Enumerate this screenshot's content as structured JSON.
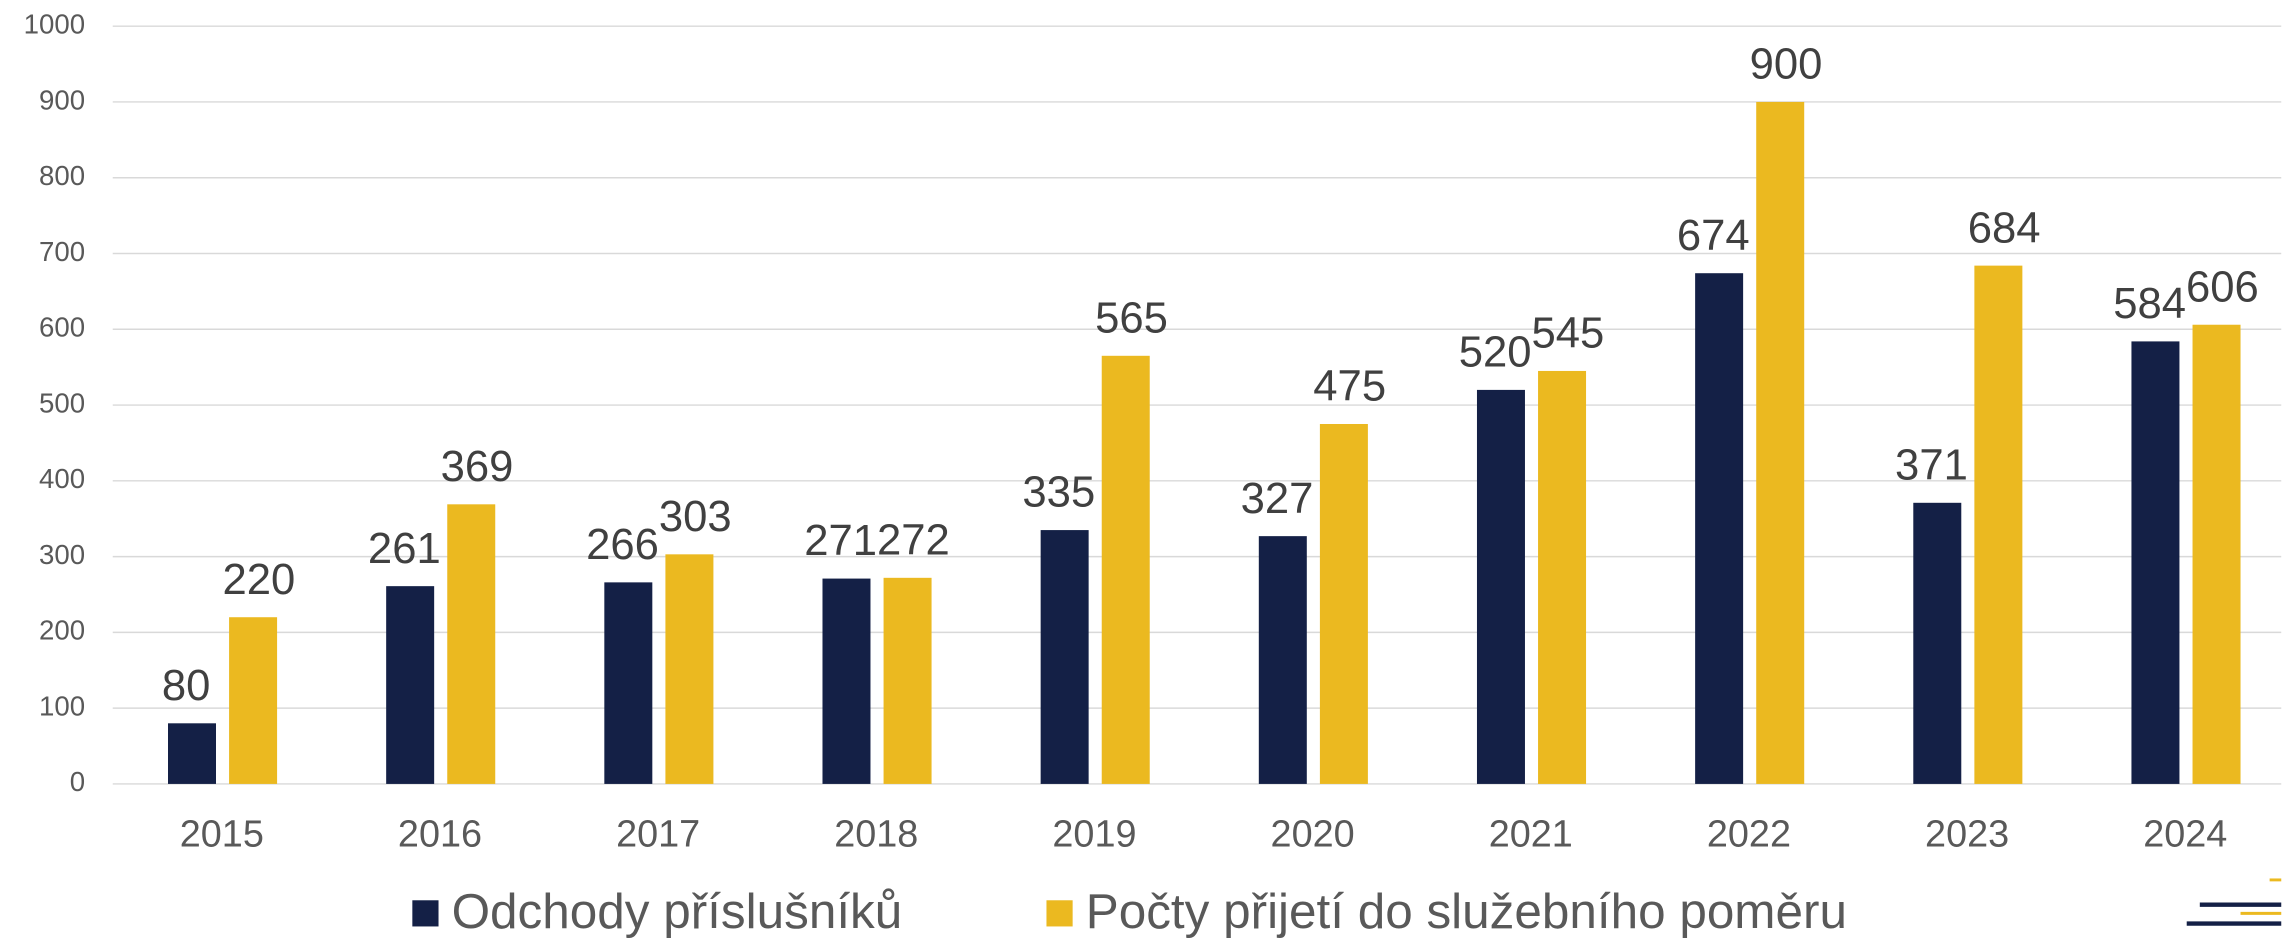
{
  "chart_data": {
    "type": "bar",
    "categories": [
      "2015",
      "2016",
      "2017",
      "2018",
      "2019",
      "2020",
      "2021",
      "2022",
      "2023",
      "2024"
    ],
    "series": [
      {
        "name": "Odchody příslušníků",
        "color": "#142046",
        "values": [
          80,
          261,
          266,
          271,
          335,
          327,
          520,
          674,
          371,
          584
        ]
      },
      {
        "name": "Počty přijetí do služebního poměru",
        "color": "#ebb920",
        "values": [
          220,
          369,
          303,
          272,
          565,
          475,
          545,
          900,
          684,
          606
        ]
      }
    ],
    "ylim": [
      0,
      1000
    ],
    "yticks": [
      0,
      100,
      200,
      300,
      400,
      500,
      600,
      700,
      800,
      900,
      1000
    ],
    "grid": true,
    "legend": "bottom"
  }
}
